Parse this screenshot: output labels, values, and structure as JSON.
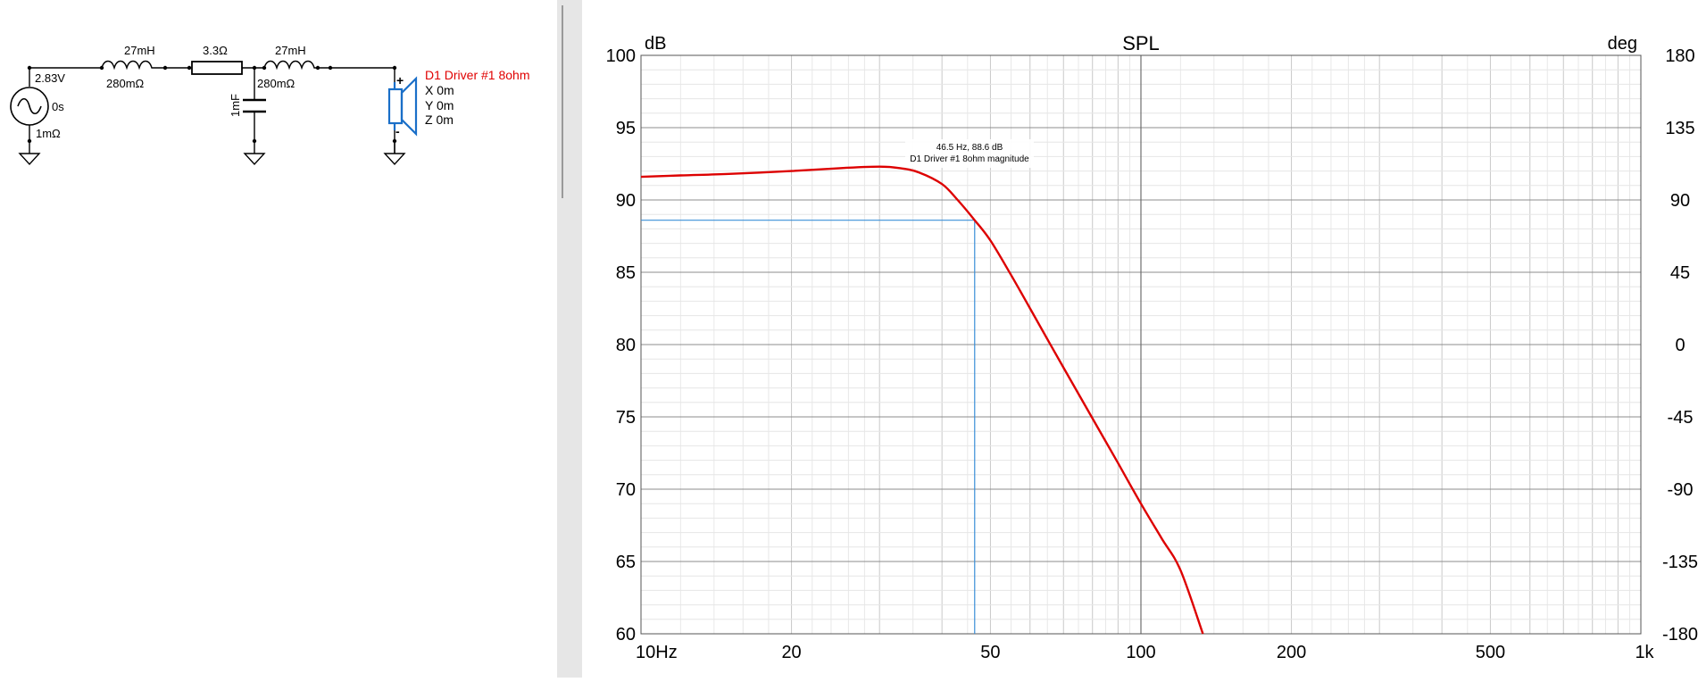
{
  "schematic": {
    "source": {
      "voltage": "2.83V",
      "delay": "0s",
      "resistance": "1mΩ"
    },
    "inductor1": {
      "value": "27mH",
      "resistance": "280mΩ"
    },
    "resistor": {
      "value": "3.3Ω"
    },
    "inductor2": {
      "value": "27mH",
      "resistance": "280mΩ"
    },
    "capacitor": {
      "value": "1mF"
    },
    "driver": {
      "name": "D1 Driver #1 8ohm",
      "x": "X 0m",
      "y": "Y 0m",
      "z": "Z 0m",
      "plus": "+",
      "minus": "-",
      "color": "#e00000"
    }
  },
  "graph": {
    "title": "SPL",
    "left_unit": "dB",
    "right_unit": "deg",
    "cursor": {
      "readout": "46.5 Hz, 88.6 dB",
      "series_label": "D1 Driver #1 8ohm magnitude",
      "freq": 46.5,
      "db": 88.6,
      "color": "#3a8fd8"
    }
  },
  "chart_data": {
    "type": "line",
    "title": "SPL",
    "xlabel": "",
    "ylabel": "dB",
    "y2label": "deg",
    "xscale": "log",
    "xlim": [
      10,
      1000
    ],
    "ylim": [
      60,
      100
    ],
    "y2lim": [
      -180,
      180
    ],
    "x_ticks": [
      {
        "value": 10,
        "label": "10Hz"
      },
      {
        "value": 20,
        "label": "20"
      },
      {
        "value": 50,
        "label": "50"
      },
      {
        "value": 100,
        "label": "100"
      },
      {
        "value": 200,
        "label": "200"
      },
      {
        "value": 500,
        "label": "500"
      },
      {
        "value": 1000,
        "label": "1k"
      }
    ],
    "y_ticks": [
      {
        "value": 100,
        "label": "100"
      },
      {
        "value": 95,
        "label": "95"
      },
      {
        "value": 90,
        "label": "90"
      },
      {
        "value": 85,
        "label": "85"
      },
      {
        "value": 80,
        "label": "80"
      },
      {
        "value": 75,
        "label": "75"
      },
      {
        "value": 70,
        "label": "70"
      },
      {
        "value": 65,
        "label": "65"
      },
      {
        "value": 60,
        "label": "60"
      }
    ],
    "y2_ticks": [
      {
        "value": 180,
        "label": "180"
      },
      {
        "value": 135,
        "label": "135"
      },
      {
        "value": 90,
        "label": "90"
      },
      {
        "value": 45,
        "label": "45"
      },
      {
        "value": 0,
        "label": "0"
      },
      {
        "value": -45,
        "label": "-45"
      },
      {
        "value": -90,
        "label": "-90"
      },
      {
        "value": -135,
        "label": "-135"
      },
      {
        "value": -180,
        "label": "-180"
      }
    ],
    "grid": true,
    "series": [
      {
        "color": "#dd0000",
        "x": [
          10,
          12,
          15,
          20,
          25,
          30,
          33,
          36,
          40,
          43,
          46.5,
          50,
          55,
          60,
          70,
          80,
          90,
          100,
          110,
          120,
          133
        ],
        "y": [
          91.6,
          91.7,
          91.8,
          92.0,
          92.2,
          92.3,
          92.2,
          91.9,
          91.1,
          90.0,
          88.6,
          87.2,
          84.8,
          82.5,
          78.4,
          74.9,
          71.8,
          69.0,
          66.6,
          64.4,
          60.0
        ]
      }
    ]
  }
}
